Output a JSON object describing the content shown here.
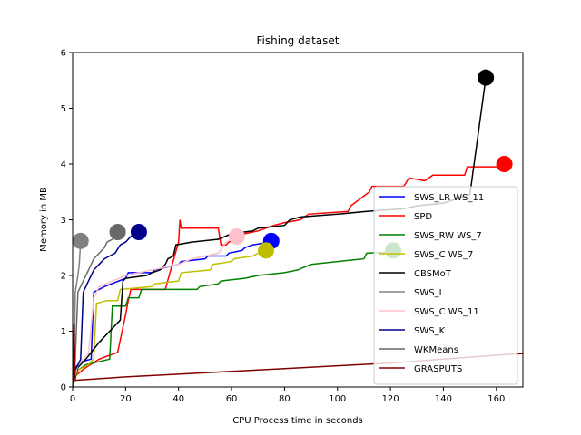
{
  "chart_data": {
    "type": "line",
    "title": "Fishing dataset",
    "xlabel": "CPU Process time in seconds",
    "ylabel": "Memory in MB",
    "xlim": [
      0,
      170
    ],
    "ylim": [
      0,
      6
    ],
    "xticks": [
      0,
      20,
      40,
      60,
      80,
      100,
      120,
      140,
      160
    ],
    "yticks": [
      0,
      1,
      2,
      3,
      4,
      5,
      6
    ],
    "grid": false,
    "legend_position": "right",
    "series": [
      {
        "name": "SWS_LR WS_11",
        "color": "#0000ff",
        "points": [
          [
            0,
            0
          ],
          [
            0.5,
            0.3
          ],
          [
            1,
            0.35
          ],
          [
            3,
            0.45
          ],
          [
            7,
            0.5
          ],
          [
            8,
            1.7
          ],
          [
            12,
            1.8
          ],
          [
            20,
            1.95
          ],
          [
            21,
            2.05
          ],
          [
            30,
            2.05
          ],
          [
            31,
            2.1
          ],
          [
            40,
            2.2
          ],
          [
            41,
            2.25
          ],
          [
            50,
            2.3
          ],
          [
            51,
            2.35
          ],
          [
            58,
            2.35
          ],
          [
            59,
            2.4
          ],
          [
            64,
            2.45
          ],
          [
            65,
            2.5
          ],
          [
            68,
            2.55
          ],
          [
            72,
            2.58
          ],
          [
            75,
            2.62
          ]
        ],
        "end_marker": {
          "x": 75,
          "y": 2.62
        }
      },
      {
        "name": "SPD",
        "color": "#ff0000",
        "points": [
          [
            0,
            0
          ],
          [
            1,
            0.2
          ],
          [
            5,
            0.35
          ],
          [
            10,
            0.5
          ],
          [
            17,
            0.62
          ],
          [
            20,
            1.3
          ],
          [
            21,
            1.55
          ],
          [
            22,
            1.75
          ],
          [
            35,
            1.75
          ],
          [
            37,
            2.1
          ],
          [
            40,
            2.6
          ],
          [
            40.5,
            3.0
          ],
          [
            41,
            2.85
          ],
          [
            55,
            2.85
          ],
          [
            56,
            2.55
          ],
          [
            58,
            2.55
          ],
          [
            59,
            2.6
          ],
          [
            62,
            2.65
          ],
          [
            63,
            2.7
          ],
          [
            65,
            2.75
          ],
          [
            70,
            2.8
          ],
          [
            73,
            2.85
          ],
          [
            76,
            2.9
          ],
          [
            80,
            2.95
          ],
          [
            86,
            3.0
          ],
          [
            89,
            3.1
          ],
          [
            104,
            3.15
          ],
          [
            105,
            3.25
          ],
          [
            112,
            3.5
          ],
          [
            113,
            3.6
          ],
          [
            125,
            3.6
          ],
          [
            127,
            3.75
          ],
          [
            133,
            3.7
          ],
          [
            136,
            3.8
          ],
          [
            148,
            3.8
          ],
          [
            149,
            3.95
          ],
          [
            160,
            3.95
          ],
          [
            163,
            4.0
          ]
        ],
        "end_marker": {
          "x": 163,
          "y": 4.0
        }
      },
      {
        "name": "SWS_RW WS_7",
        "color": "#008000",
        "points": [
          [
            0,
            0
          ],
          [
            2,
            0.3
          ],
          [
            5,
            0.4
          ],
          [
            14,
            0.5
          ],
          [
            15,
            1.45
          ],
          [
            20,
            1.45
          ],
          [
            21,
            1.6
          ],
          [
            25,
            1.6
          ],
          [
            26,
            1.75
          ],
          [
            47,
            1.75
          ],
          [
            48,
            1.8
          ],
          [
            55,
            1.85
          ],
          [
            56,
            1.9
          ],
          [
            65,
            1.95
          ],
          [
            70,
            2.0
          ],
          [
            80,
            2.05
          ],
          [
            85,
            2.1
          ],
          [
            90,
            2.2
          ],
          [
            100,
            2.25
          ],
          [
            110,
            2.3
          ],
          [
            111,
            2.4
          ],
          [
            120,
            2.42
          ],
          [
            121,
            2.45
          ]
        ],
        "end_marker": {
          "x": 121,
          "y": 2.45
        }
      },
      {
        "name": "SWS_C WS_7",
        "color": "#bfbf00",
        "points": [
          [
            0,
            0
          ],
          [
            2,
            0.3
          ],
          [
            6,
            0.4
          ],
          [
            8,
            0.5
          ],
          [
            9,
            1.5
          ],
          [
            13,
            1.55
          ],
          [
            17,
            1.55
          ],
          [
            18,
            1.75
          ],
          [
            30,
            1.8
          ],
          [
            31,
            1.85
          ],
          [
            40,
            1.9
          ],
          [
            41,
            2.05
          ],
          [
            52,
            2.1
          ],
          [
            53,
            2.2
          ],
          [
            60,
            2.25
          ],
          [
            61,
            2.3
          ],
          [
            68,
            2.35
          ],
          [
            70,
            2.4
          ],
          [
            73,
            2.45
          ]
        ],
        "end_marker": {
          "x": 73,
          "y": 2.45
        }
      },
      {
        "name": "CBSMoT",
        "color": "#000000",
        "points": [
          [
            0,
            0
          ],
          [
            2,
            0.35
          ],
          [
            5,
            0.5
          ],
          [
            10,
            0.8
          ],
          [
            14,
            1.0
          ],
          [
            18,
            1.2
          ],
          [
            19,
            1.9
          ],
          [
            20,
            1.95
          ],
          [
            28,
            2.0
          ],
          [
            30,
            2.05
          ],
          [
            33,
            2.1
          ],
          [
            35,
            2.2
          ],
          [
            36,
            2.3
          ],
          [
            38,
            2.35
          ],
          [
            39,
            2.55
          ],
          [
            45,
            2.6
          ],
          [
            55,
            2.65
          ],
          [
            60,
            2.75
          ],
          [
            68,
            2.8
          ],
          [
            70,
            2.85
          ],
          [
            80,
            2.9
          ],
          [
            82,
            3.0
          ],
          [
            86,
            3.05
          ],
          [
            100,
            3.1
          ],
          [
            111,
            3.15
          ],
          [
            125,
            3.2
          ],
          [
            130,
            3.25
          ],
          [
            140,
            3.3
          ],
          [
            150,
            3.45
          ],
          [
            156,
            5.55
          ]
        ],
        "end_marker": {
          "x": 156,
          "y": 5.55
        }
      },
      {
        "name": "SWS_L",
        "color": "#808080",
        "points": [
          [
            0,
            0
          ],
          [
            0.5,
            0.3
          ],
          [
            1,
            1.7
          ],
          [
            2,
            2.0
          ],
          [
            2.5,
            2.2
          ],
          [
            3,
            2.62
          ]
        ],
        "end_marker": {
          "x": 3,
          "y": 2.62
        }
      },
      {
        "name": "SWS_C WS_11",
        "color": "#ffc0cb",
        "points": [
          [
            0,
            0
          ],
          [
            2,
            0.4
          ],
          [
            6,
            0.6
          ],
          [
            8,
            1.6
          ],
          [
            10,
            1.8
          ],
          [
            15,
            1.9
          ],
          [
            20,
            2.0
          ],
          [
            25,
            2.05
          ],
          [
            30,
            2.1
          ],
          [
            35,
            2.15
          ],
          [
            40,
            2.2
          ],
          [
            45,
            2.3
          ],
          [
            50,
            2.35
          ],
          [
            55,
            2.4
          ],
          [
            58,
            2.6
          ],
          [
            62,
            2.7
          ]
        ],
        "end_marker": {
          "x": 62,
          "y": 2.7
        }
      },
      {
        "name": "SWS_K",
        "color": "#00008b",
        "points": [
          [
            0,
            0
          ],
          [
            1,
            0.3
          ],
          [
            3,
            0.5
          ],
          [
            4,
            1.7
          ],
          [
            6,
            1.9
          ],
          [
            8,
            2.1
          ],
          [
            10,
            2.2
          ],
          [
            12,
            2.3
          ],
          [
            14,
            2.35
          ],
          [
            16,
            2.4
          ],
          [
            18,
            2.55
          ],
          [
            20,
            2.6
          ],
          [
            22,
            2.7
          ],
          [
            25,
            2.78
          ]
        ],
        "end_marker": {
          "x": 25,
          "y": 2.78
        }
      },
      {
        "name": "WKMeans",
        "color": "#696969",
        "points": [
          [
            0,
            0
          ],
          [
            1,
            0.5
          ],
          [
            2,
            1.7
          ],
          [
            4,
            1.9
          ],
          [
            6,
            2.1
          ],
          [
            8,
            2.3
          ],
          [
            10,
            2.4
          ],
          [
            12,
            2.5
          ],
          [
            13,
            2.6
          ],
          [
            15,
            2.65
          ],
          [
            17,
            2.78
          ]
        ],
        "end_marker": {
          "x": 17,
          "y": 2.78
        }
      },
      {
        "name": "GRASPUTS",
        "color": "#800000",
        "points": [
          [
            0,
            0
          ],
          [
            0.5,
            1.12
          ],
          [
            1,
            0.12
          ],
          [
            20,
            0.18
          ],
          [
            40,
            0.23
          ],
          [
            60,
            0.28
          ],
          [
            80,
            0.33
          ],
          [
            100,
            0.38
          ],
          [
            120,
            0.43
          ],
          [
            140,
            0.5
          ],
          [
            160,
            0.57
          ],
          [
            170,
            0.6
          ]
        ]
      }
    ]
  }
}
